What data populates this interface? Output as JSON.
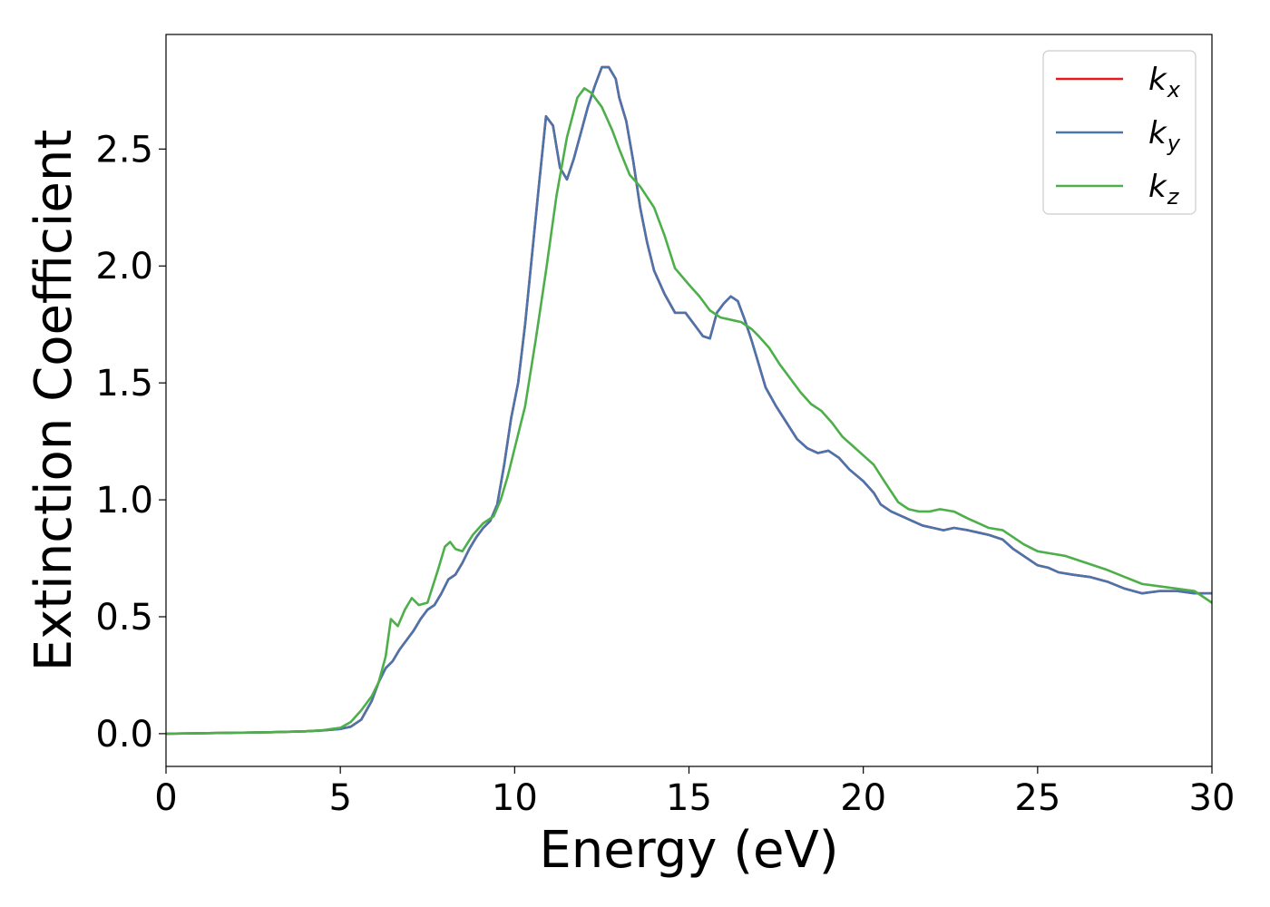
{
  "chart_data": {
    "type": "line",
    "xlabel": "Energy (eV)",
    "ylabel": "Extinction Coefficient",
    "xlim": [
      0,
      30
    ],
    "ylim": [
      -0.14,
      2.99
    ],
    "xticks": [
      "0",
      "5",
      "10",
      "15",
      "20",
      "25",
      "30"
    ],
    "yticks": [
      "0.0",
      "0.5",
      "1.0",
      "1.5",
      "2.0",
      "2.5"
    ],
    "grid": false,
    "legend_position": "top-right",
    "series": [
      {
        "name": "k",
        "subscript": "x",
        "color": "#e41a1c",
        "x": [
          0,
          1,
          2,
          3,
          4,
          4.5,
          5,
          5.3,
          5.6,
          5.9,
          6.1,
          6.3,
          6.5,
          6.7,
          6.9,
          7.1,
          7.3,
          7.5,
          7.7,
          7.9,
          8.1,
          8.3,
          8.5,
          8.7,
          8.9,
          9.1,
          9.3,
          9.5,
          9.7,
          9.9,
          10.1,
          10.3,
          10.5,
          10.7,
          10.9,
          11.1,
          11.3,
          11.5,
          11.7,
          11.9,
          12.1,
          12.3,
          12.5,
          12.7,
          12.9,
          13.0,
          13.2,
          13.4,
          13.6,
          13.8,
          14.0,
          14.3,
          14.6,
          14.9,
          15.2,
          15.4,
          15.6,
          15.8,
          16.0,
          16.2,
          16.4,
          16.6,
          16.8,
          17.0,
          17.2,
          17.5,
          17.8,
          18.1,
          18.4,
          18.7,
          19.0,
          19.3,
          19.6,
          20.0,
          20.3,
          20.5,
          20.8,
          21.1,
          21.4,
          21.7,
          22.0,
          22.3,
          22.6,
          23.0,
          23.3,
          23.6,
          24.0,
          24.3,
          24.6,
          25.0,
          25.3,
          25.6,
          26.0,
          26.5,
          27.0,
          27.5,
          28.0,
          28.5,
          29.0,
          29.5,
          30.0
        ],
        "values": [
          0.0,
          0.002,
          0.004,
          0.006,
          0.01,
          0.014,
          0.02,
          0.03,
          0.06,
          0.14,
          0.22,
          0.28,
          0.31,
          0.36,
          0.4,
          0.44,
          0.49,
          0.53,
          0.55,
          0.6,
          0.66,
          0.68,
          0.73,
          0.79,
          0.84,
          0.88,
          0.91,
          0.98,
          1.15,
          1.35,
          1.5,
          1.75,
          2.05,
          2.35,
          2.64,
          2.6,
          2.42,
          2.37,
          2.46,
          2.57,
          2.68,
          2.77,
          2.85,
          2.85,
          2.8,
          2.72,
          2.62,
          2.45,
          2.25,
          2.1,
          1.98,
          1.88,
          1.8,
          1.8,
          1.74,
          1.7,
          1.69,
          1.8,
          1.84,
          1.87,
          1.85,
          1.77,
          1.68,
          1.58,
          1.48,
          1.4,
          1.33,
          1.26,
          1.22,
          1.2,
          1.21,
          1.18,
          1.13,
          1.08,
          1.03,
          0.98,
          0.95,
          0.93,
          0.91,
          0.89,
          0.88,
          0.87,
          0.88,
          0.87,
          0.86,
          0.85,
          0.83,
          0.79,
          0.76,
          0.72,
          0.71,
          0.69,
          0.68,
          0.67,
          0.65,
          0.62,
          0.6,
          0.61,
          0.61,
          0.6,
          0.6
        ]
      },
      {
        "name": "k",
        "subscript": "y",
        "color": "#4a74ab",
        "x": [
          0,
          1,
          2,
          3,
          4,
          4.5,
          5,
          5.3,
          5.6,
          5.9,
          6.1,
          6.3,
          6.5,
          6.7,
          6.9,
          7.1,
          7.3,
          7.5,
          7.7,
          7.9,
          8.1,
          8.3,
          8.5,
          8.7,
          8.9,
          9.1,
          9.3,
          9.5,
          9.7,
          9.9,
          10.1,
          10.3,
          10.5,
          10.7,
          10.9,
          11.1,
          11.3,
          11.5,
          11.7,
          11.9,
          12.1,
          12.3,
          12.5,
          12.7,
          12.9,
          13.0,
          13.2,
          13.4,
          13.6,
          13.8,
          14.0,
          14.3,
          14.6,
          14.9,
          15.2,
          15.4,
          15.6,
          15.8,
          16.0,
          16.2,
          16.4,
          16.6,
          16.8,
          17.0,
          17.2,
          17.5,
          17.8,
          18.1,
          18.4,
          18.7,
          19.0,
          19.3,
          19.6,
          20.0,
          20.3,
          20.5,
          20.8,
          21.1,
          21.4,
          21.7,
          22.0,
          22.3,
          22.6,
          23.0,
          23.3,
          23.6,
          24.0,
          24.3,
          24.6,
          25.0,
          25.3,
          25.6,
          26.0,
          26.5,
          27.0,
          27.5,
          28.0,
          28.5,
          29.0,
          29.5,
          30.0
        ],
        "values": [
          0.0,
          0.002,
          0.004,
          0.006,
          0.01,
          0.014,
          0.02,
          0.03,
          0.06,
          0.14,
          0.22,
          0.28,
          0.31,
          0.36,
          0.4,
          0.44,
          0.49,
          0.53,
          0.55,
          0.6,
          0.66,
          0.68,
          0.73,
          0.79,
          0.84,
          0.88,
          0.91,
          0.98,
          1.15,
          1.35,
          1.5,
          1.75,
          2.05,
          2.35,
          2.64,
          2.6,
          2.42,
          2.37,
          2.46,
          2.57,
          2.68,
          2.77,
          2.85,
          2.85,
          2.8,
          2.72,
          2.62,
          2.45,
          2.25,
          2.1,
          1.98,
          1.88,
          1.8,
          1.8,
          1.74,
          1.7,
          1.69,
          1.8,
          1.84,
          1.87,
          1.85,
          1.77,
          1.68,
          1.58,
          1.48,
          1.4,
          1.33,
          1.26,
          1.22,
          1.2,
          1.21,
          1.18,
          1.13,
          1.08,
          1.03,
          0.98,
          0.95,
          0.93,
          0.91,
          0.89,
          0.88,
          0.87,
          0.88,
          0.87,
          0.86,
          0.85,
          0.83,
          0.79,
          0.76,
          0.72,
          0.71,
          0.69,
          0.68,
          0.67,
          0.65,
          0.62,
          0.6,
          0.61,
          0.61,
          0.6,
          0.6
        ]
      },
      {
        "name": "k",
        "subscript": "z",
        "color": "#4daf4a",
        "x": [
          0,
          1,
          2,
          3,
          4,
          4.5,
          5,
          5.3,
          5.6,
          5.9,
          6.1,
          6.3,
          6.45,
          6.65,
          6.85,
          7.05,
          7.25,
          7.5,
          7.8,
          8.0,
          8.15,
          8.3,
          8.5,
          8.8,
          9.1,
          9.4,
          9.6,
          9.8,
          10.0,
          10.3,
          10.6,
          10.9,
          11.2,
          11.5,
          11.8,
          12.0,
          12.2,
          12.5,
          12.8,
          13.0,
          13.3,
          13.6,
          14.0,
          14.3,
          14.6,
          15.0,
          15.3,
          15.6,
          15.9,
          16.2,
          16.5,
          16.8,
          17.0,
          17.3,
          17.6,
          17.9,
          18.2,
          18.5,
          18.8,
          19.1,
          19.4,
          19.7,
          20.0,
          20.3,
          20.6,
          21.0,
          21.3,
          21.6,
          21.9,
          22.2,
          22.6,
          23.0,
          23.3,
          23.6,
          24.0,
          24.3,
          24.6,
          25.0,
          25.4,
          25.8,
          26.2,
          26.6,
          27.0,
          27.5,
          28.0,
          28.5,
          29.0,
          29.5,
          29.8,
          30.0
        ],
        "values": [
          0.0,
          0.002,
          0.004,
          0.006,
          0.01,
          0.015,
          0.025,
          0.05,
          0.1,
          0.16,
          0.22,
          0.33,
          0.49,
          0.46,
          0.53,
          0.58,
          0.55,
          0.56,
          0.7,
          0.8,
          0.82,
          0.79,
          0.78,
          0.85,
          0.9,
          0.93,
          1.0,
          1.1,
          1.22,
          1.4,
          1.68,
          1.98,
          2.3,
          2.55,
          2.72,
          2.76,
          2.74,
          2.68,
          2.58,
          2.5,
          2.39,
          2.34,
          2.25,
          2.13,
          1.99,
          1.92,
          1.87,
          1.81,
          1.78,
          1.77,
          1.76,
          1.73,
          1.7,
          1.65,
          1.58,
          1.52,
          1.46,
          1.41,
          1.38,
          1.33,
          1.27,
          1.23,
          1.19,
          1.15,
          1.08,
          0.99,
          0.96,
          0.95,
          0.95,
          0.96,
          0.95,
          0.92,
          0.9,
          0.88,
          0.87,
          0.84,
          0.81,
          0.78,
          0.77,
          0.76,
          0.74,
          0.72,
          0.7,
          0.67,
          0.64,
          0.63,
          0.62,
          0.61,
          0.58,
          0.56
        ]
      }
    ]
  }
}
